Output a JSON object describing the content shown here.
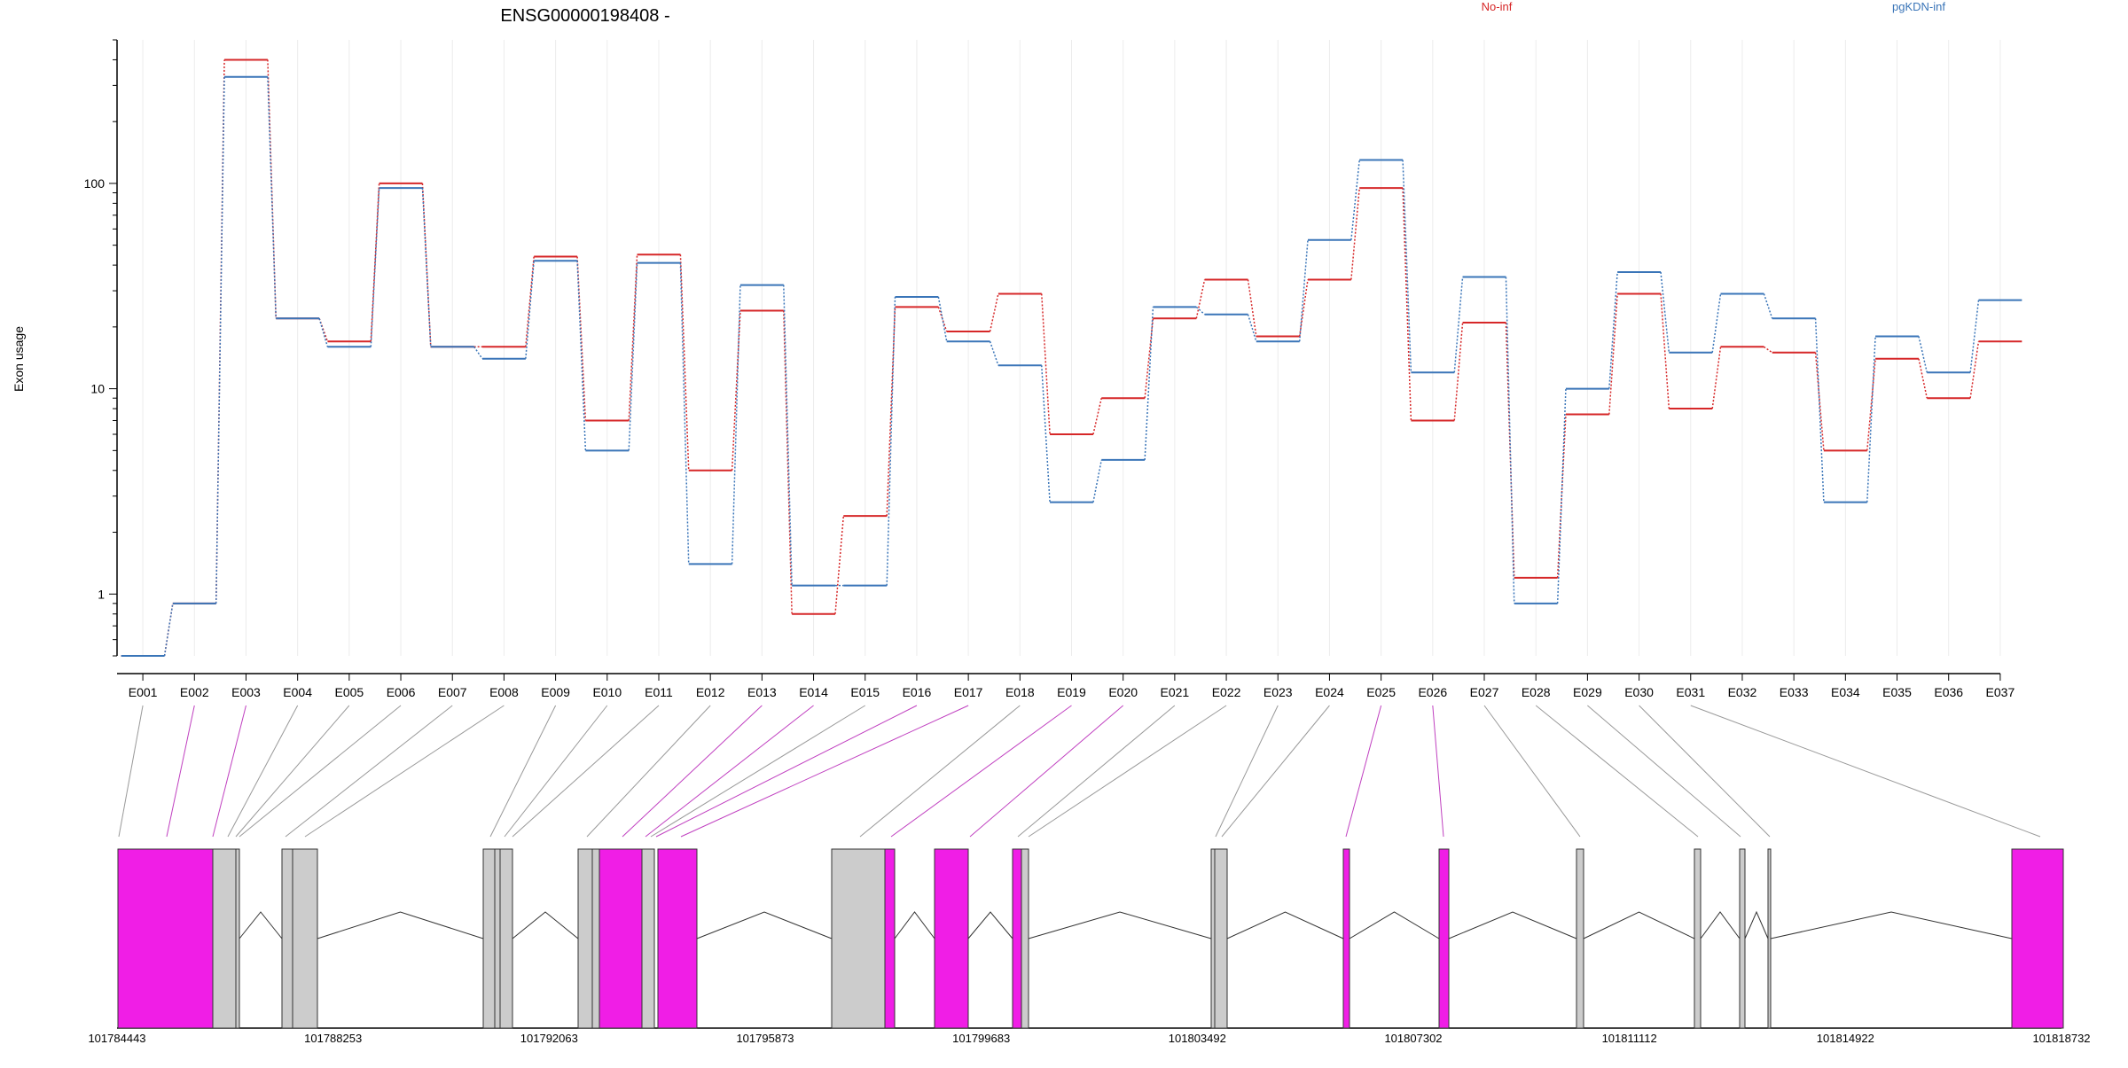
{
  "chart_data": {
    "type": "line",
    "title": "ENSG00000198408 -",
    "ylabel": "Exon usage",
    "y_scale": "log",
    "ylim": [
      0.5,
      500
    ],
    "y_ticks": [
      1,
      10,
      100
    ],
    "grid": "vertical",
    "legend_placement": "top",
    "categories": [
      "E001",
      "E002",
      "E003",
      "E004",
      "E005",
      "E006",
      "E007",
      "E008",
      "E009",
      "E010",
      "E011",
      "E012",
      "E013",
      "E014",
      "E015",
      "E016",
      "E017",
      "E018",
      "E019",
      "E020",
      "E021",
      "E022",
      "E023",
      "E024",
      "E025",
      "E026",
      "E027",
      "E028",
      "E029",
      "E030",
      "E031",
      "E032",
      "E033",
      "E034",
      "E035",
      "E036",
      "E037"
    ],
    "series": [
      {
        "name": "No-inf",
        "color": "#d62728",
        "values": [
          0.5,
          0.9,
          400,
          22,
          17,
          100,
          16,
          16,
          44,
          7,
          45,
          4,
          24,
          0.8,
          2.4,
          25,
          19,
          29,
          6,
          9,
          22,
          34,
          18,
          34,
          95,
          7,
          21,
          1.2,
          7.5,
          29,
          8,
          16,
          15,
          5,
          14,
          9,
          17
        ]
      },
      {
        "name": "pgKDN-inf",
        "color": "#3a75b8",
        "values": [
          0.5,
          0.9,
          330,
          22,
          16,
          95,
          16,
          14,
          42,
          5,
          41,
          1.4,
          32,
          1.1,
          1.1,
          28,
          17,
          13,
          2.8,
          4.5,
          25,
          23,
          17,
          53,
          130,
          12,
          35,
          0.9,
          10,
          37,
          15,
          29,
          22,
          2.8,
          18,
          12,
          27
        ]
      }
    ],
    "gene_model": {
      "genomic_ticks": [
        "101784443",
        "101788253",
        "101792063",
        "101795873",
        "101799683",
        "101803492",
        "101807302",
        "101811112",
        "101814922",
        "101818732"
      ],
      "highlight_color": "#f01ee6",
      "exon_color": "#cccccc",
      "significant_exons": [
        "E002",
        "E003",
        "E013",
        "E014",
        "E016",
        "E017",
        "E019",
        "E020",
        "E025",
        "E026",
        "E037"
      ]
    }
  }
}
